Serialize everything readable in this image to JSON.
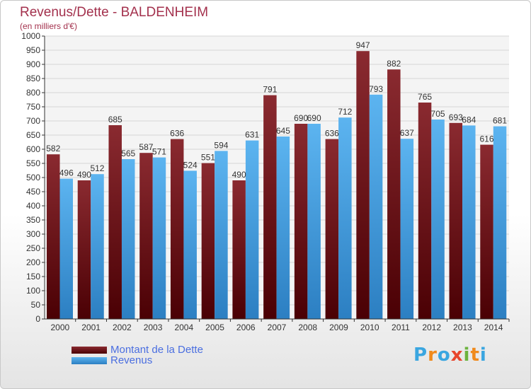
{
  "header": {
    "title": "Revenus/Dette - BALDENHEIM",
    "subtitle": "(en milliers d'€)"
  },
  "chart_data": {
    "type": "bar",
    "categories": [
      "2000",
      "2001",
      "2002",
      "2003",
      "2004",
      "2005",
      "2006",
      "2007",
      "2008",
      "2009",
      "2010",
      "2011",
      "2012",
      "2013",
      "2014"
    ],
    "series": [
      {
        "name": "Montant de la Dette",
        "color": "#7f1d22",
        "values": [
          582,
          490,
          685,
          587,
          636,
          551,
          490,
          791,
          690,
          636,
          947,
          882,
          765,
          693,
          616
        ]
      },
      {
        "name": "Revenus",
        "color": "#4aa3e6",
        "values": [
          496,
          512,
          565,
          571,
          524,
          594,
          631,
          645,
          690,
          712,
          793,
          637,
          705,
          684,
          681
        ]
      }
    ],
    "ylim": [
      0,
      1000
    ],
    "ytick_step": 50,
    "grid": true,
    "legend_position": "bottom-left"
  },
  "legend": {
    "items": [
      {
        "label": "Montant de la Dette",
        "color": "#7f1d22"
      },
      {
        "label": "Revenus",
        "color": "#4aa3e6"
      }
    ]
  },
  "logo": {
    "letters": [
      "P",
      "r",
      "o",
      "x",
      "i",
      "t",
      "i"
    ],
    "colors": [
      "#3aa6e0",
      "#f08a1c",
      "#3aa6e0",
      "#e8452c",
      "#6cb33e",
      "#f08a1c",
      "#3aa6e0"
    ]
  }
}
